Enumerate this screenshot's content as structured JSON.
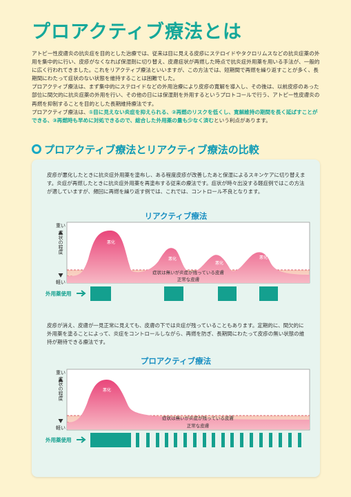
{
  "page": {
    "title": "プロアクティブ療法とは",
    "intro": [
      {
        "text": "アトピー性皮膚炎の抗炎症を目的とした治療では、従来は目に見える皮疹にステロイドやタクロリムスなどの抗炎症薬の外用を集中的に行い、皮疹がなくなれば保湿剤に切り替え、皮膚症状が再燃した時点で抗炎症外用薬を用いる手法が、一般的に広く行われてきました。これをリアクティブ療法といいますが、この方法では、短期間で再燃を繰り返すことが多く、長期間にわたって症状のない状態を維持することは困難でした。"
      },
      {
        "text": "プロアクティブ療法は、まず集中的にステロイドなどの外用治療により皮疹の寛解を導入し、その後は、以前皮疹のあった部位に間欠的に抗炎症薬の外用を行い、その他の日には保湿剤を外用するというプロトコールで行う、アトピー性皮膚炎の再燃を抑制することを目的とした長期維持療法です。"
      },
      {
        "pre": "プロアクティブ療法は、",
        "highlight": "①目に見えない炎症を抑えられる、②再燃のリスクを低くし、寛解維持の期間を長く延ばすことができる、③再燃時も早めに対処できるので、総合した外用薬の量も少なく済む",
        "post": "という利点があります。"
      }
    ],
    "section_title": "プロアクティブ療法とリアクティブ療法の比較"
  },
  "comparison": {
    "reactive_paragraph": "皮疹が悪化したときに抗炎症外用薬を塗布し、ある程度皮疹が改善したあと保湿によるスキンケアに切り替えます。炎症が再燃したときに抗炎症外用薬を再塗布する従来の療法です。症状が時々出没する軽症例ではこの方法が適していますが、頻回に再燃を繰り返す例では、これでは、コントロール不良となります。",
    "proactive_paragraph": "皮疹が消え、皮膚が一見正常に見えても、皮膚の下では炎症が残っていることもあります。定期的に、間欠的に外用薬を塗ることによって、炎症をコントロールしながら、再燃を防ぎ、長期間にわたって皮疹の無い状態の維持が期待できる療法です。"
  },
  "charts": {
    "labels": {
      "high": "重い",
      "severity": "症状の程度",
      "low": "軽い",
      "flare": "悪化",
      "residual": "症状は無いが炎症が残っている皮膚",
      "normal": "正常な皮膚",
      "usage": "外用薬使用"
    },
    "reactive_title": "リアクティブ療法",
    "proactive_title": "プロアクティブ療法"
  },
  "colors": {
    "accent": "#16a89a",
    "blue": "#1a8fc2",
    "flare": "#e9557f",
    "bar": "#14a08f"
  }
}
